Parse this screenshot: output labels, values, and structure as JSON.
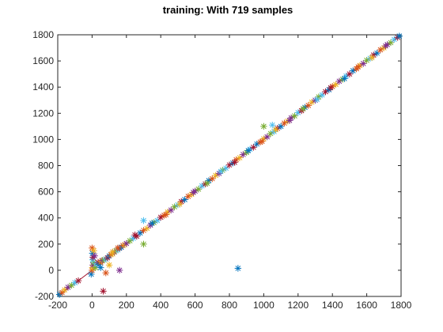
{
  "chart_data": {
    "type": "scatter",
    "title": "training: With 719 samples",
    "xlabel": "",
    "ylabel": "",
    "xlim": [
      -200,
      1800
    ],
    "ylim": [
      -200,
      1800
    ],
    "xticks": [
      "-200",
      "0",
      "200",
      "400",
      "600",
      "800",
      "1000",
      "1200",
      "1400",
      "1600",
      "1800"
    ],
    "yticks": [
      "-200",
      "0",
      "200",
      "400",
      "600",
      "800",
      "1000",
      "1200",
      "1400",
      "1600",
      "1800"
    ],
    "grid": false,
    "box": true,
    "marker": "asterisk",
    "fit_line": {
      "color": "#a2142f",
      "from": [
        -190,
        -190
      ],
      "to": [
        1790,
        1790
      ]
    },
    "colors": [
      "#0072bd",
      "#d95319",
      "#edb120",
      "#7e2f8e",
      "#77ac30",
      "#4dbeee",
      "#a2142f"
    ],
    "points": [
      [
        -190,
        -185
      ],
      [
        -175,
        -170
      ],
      [
        -160,
        -150
      ],
      [
        -140,
        -130
      ],
      [
        -120,
        -115
      ],
      [
        -100,
        -95
      ],
      [
        -80,
        -80
      ],
      [
        -5,
        -30
      ],
      [
        0,
        0
      ],
      [
        2,
        20
      ],
      [
        5,
        40
      ],
      [
        8,
        60
      ],
      [
        3,
        80
      ],
      [
        5,
        100
      ],
      [
        2,
        130
      ],
      [
        0,
        170
      ],
      [
        10,
        150
      ],
      [
        15,
        110
      ],
      [
        20,
        20
      ],
      [
        25,
        50
      ],
      [
        35,
        60
      ],
      [
        40,
        45
      ],
      [
        50,
        60
      ],
      [
        55,
        70
      ],
      [
        60,
        75
      ],
      [
        70,
        80
      ],
      [
        80,
        85
      ],
      [
        90,
        95
      ],
      [
        100,
        110
      ],
      [
        110,
        120
      ],
      [
        120,
        125
      ],
      [
        130,
        140
      ],
      [
        140,
        150
      ],
      [
        150,
        155
      ],
      [
        160,
        170
      ],
      [
        170,
        175
      ],
      [
        180,
        190
      ],
      [
        190,
        195
      ],
      [
        200,
        205
      ],
      [
        220,
        225
      ],
      [
        240,
        245
      ],
      [
        260,
        260
      ],
      [
        280,
        285
      ],
      [
        300,
        305
      ],
      [
        320,
        320
      ],
      [
        340,
        345
      ],
      [
        360,
        365
      ],
      [
        380,
        380
      ],
      [
        400,
        405
      ],
      [
        50,
        20
      ],
      [
        80,
        -20
      ],
      [
        100,
        40
      ],
      [
        160,
        0
      ],
      [
        300,
        200
      ],
      [
        300,
        380
      ],
      [
        65,
        -160
      ],
      [
        850,
        15
      ],
      [
        420,
        420
      ],
      [
        440,
        445
      ],
      [
        460,
        460
      ],
      [
        480,
        485
      ],
      [
        500,
        500
      ],
      [
        520,
        525
      ],
      [
        540,
        540
      ],
      [
        560,
        565
      ],
      [
        580,
        580
      ],
      [
        600,
        605
      ],
      [
        620,
        620
      ],
      [
        640,
        645
      ],
      [
        660,
        660
      ],
      [
        680,
        685
      ],
      [
        700,
        700
      ],
      [
        720,
        725
      ],
      [
        740,
        740
      ],
      [
        760,
        765
      ],
      [
        780,
        780
      ],
      [
        800,
        805
      ],
      [
        820,
        820
      ],
      [
        840,
        845
      ],
      [
        860,
        860
      ],
      [
        880,
        885
      ],
      [
        900,
        900
      ],
      [
        920,
        925
      ],
      [
        940,
        940
      ],
      [
        960,
        965
      ],
      [
        980,
        980
      ],
      [
        1000,
        1005
      ],
      [
        1020,
        1020
      ],
      [
        1040,
        1045
      ],
      [
        1060,
        1060
      ],
      [
        1080,
        1085
      ],
      [
        1100,
        1100
      ],
      [
        1120,
        1125
      ],
      [
        1140,
        1140
      ],
      [
        1160,
        1165
      ],
      [
        1180,
        1180
      ],
      [
        1200,
        1205
      ],
      [
        1220,
        1220
      ],
      [
        1240,
        1245
      ],
      [
        1260,
        1260
      ],
      [
        1280,
        1285
      ],
      [
        1300,
        1300
      ],
      [
        1320,
        1325
      ],
      [
        1340,
        1340
      ],
      [
        1360,
        1365
      ],
      [
        1380,
        1380
      ],
      [
        1400,
        1405
      ],
      [
        1420,
        1420
      ],
      [
        1440,
        1445
      ],
      [
        1460,
        1460
      ],
      [
        1480,
        1485
      ],
      [
        1500,
        1500
      ],
      [
        1520,
        1525
      ],
      [
        1540,
        1540
      ],
      [
        1560,
        1565
      ],
      [
        1580,
        1580
      ],
      [
        1600,
        1605
      ],
      [
        1620,
        1620
      ],
      [
        1640,
        1645
      ],
      [
        1660,
        1660
      ],
      [
        1680,
        1685
      ],
      [
        1700,
        1700
      ],
      [
        1720,
        1725
      ],
      [
        1740,
        1740
      ],
      [
        1760,
        1765
      ],
      [
        1780,
        1780
      ],
      [
        1790,
        1790
      ],
      [
        430,
        425
      ],
      [
        510,
        505
      ],
      [
        590,
        595
      ],
      [
        670,
        665
      ],
      [
        750,
        755
      ],
      [
        830,
        825
      ],
      [
        910,
        915
      ],
      [
        990,
        985
      ],
      [
        1070,
        1075
      ],
      [
        1150,
        1145
      ],
      [
        1230,
        1235
      ],
      [
        1310,
        1305
      ],
      [
        1390,
        1395
      ],
      [
        1470,
        1465
      ],
      [
        1550,
        1555
      ],
      [
        1630,
        1625
      ],
      [
        1710,
        1715
      ],
      [
        1000,
        1100
      ],
      [
        1050,
        1110
      ],
      [
        250,
        270
      ],
      [
        350,
        360
      ],
      [
        150,
        170
      ],
      [
        120,
        140
      ]
    ]
  }
}
